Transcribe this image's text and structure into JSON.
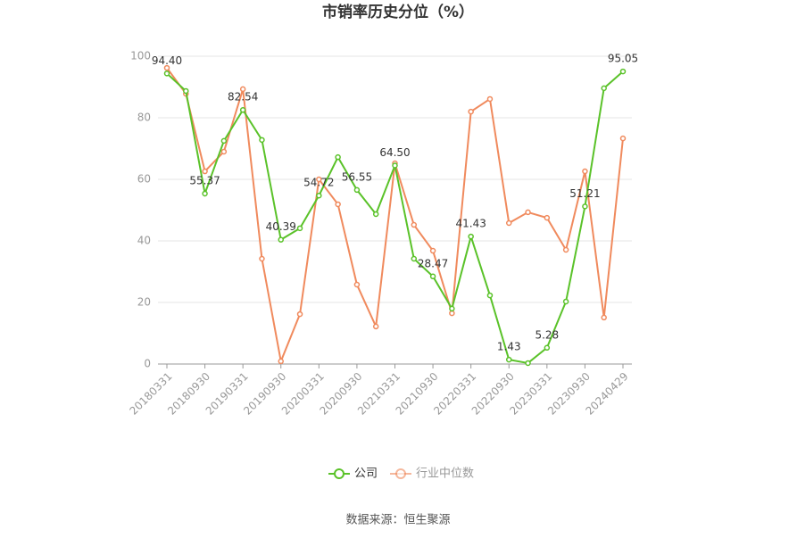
{
  "chart_data": {
    "type": "line",
    "title": "市销率历史分位（%）",
    "categories": [
      "20180331",
      null,
      "20180930",
      null,
      "20190331",
      null,
      "20190930",
      null,
      "20200331",
      null,
      "20200930",
      null,
      "20210331",
      null,
      "20210930",
      null,
      "20220331",
      null,
      "20220930",
      null,
      "20230331",
      null,
      "20230930",
      null,
      "20240429"
    ],
    "series": [
      {
        "name": "公司",
        "color": "#5ac229",
        "values": [
          94.4,
          88.7,
          55.37,
          72.5,
          82.54,
          72.8,
          40.39,
          44.1,
          54.72,
          67.2,
          56.55,
          48.7,
          64.5,
          34.2,
          28.47,
          18.0,
          41.43,
          22.3,
          1.43,
          0.3,
          5.28,
          20.3,
          51.21,
          89.6,
          95.05
        ],
        "value_labels": [
          "94.40",
          null,
          "55.37",
          null,
          "82.54",
          null,
          "40.39",
          null,
          "54.72",
          null,
          "56.55",
          null,
          "64.50",
          null,
          "28.47",
          null,
          "41.43",
          null,
          "1.43",
          null,
          "5.28",
          null,
          "51.21",
          null,
          "95.05"
        ]
      },
      {
        "name": "行业中位数",
        "color": "#f08a5d",
        "values": [
          96.2,
          87.8,
          62.6,
          69.0,
          89.3,
          34.2,
          0.9,
          16.2,
          60.0,
          51.9,
          25.8,
          12.2,
          65.2,
          45.2,
          36.8,
          16.5,
          82.0,
          86.1,
          45.8,
          49.3,
          47.5,
          37.1,
          62.6,
          15.1,
          73.3
        ]
      }
    ],
    "ylim": [
      0,
      100
    ],
    "yticks": [
      0,
      20,
      40,
      60,
      80,
      100
    ],
    "grid": true,
    "legend": "bottom",
    "source": "数据来源：恒生聚源"
  }
}
